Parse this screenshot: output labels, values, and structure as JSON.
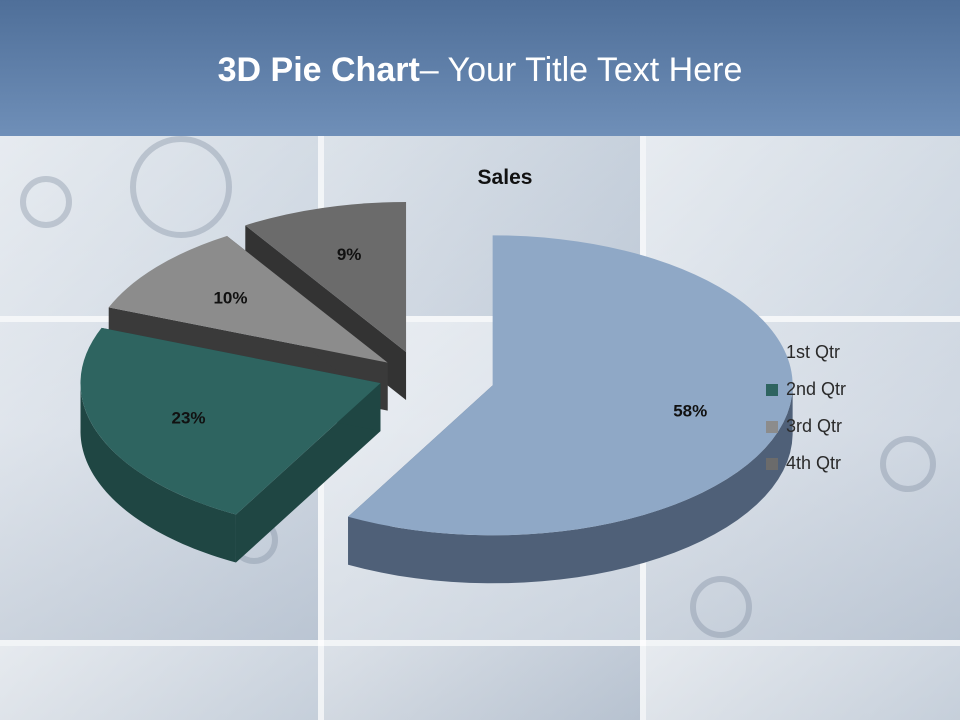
{
  "slide": {
    "title_bold": "3D Pie Chart",
    "title_rest": "– Your Title Text Here"
  },
  "chart_data": {
    "type": "pie",
    "title": "Sales",
    "categories": [
      "1st Qtr",
      "2nd Qtr",
      "3rd Qtr",
      "4th Qtr"
    ],
    "values": [
      58,
      23,
      10,
      9
    ],
    "labels": [
      "58%",
      "23%",
      "10%",
      "9%"
    ],
    "colors": [
      "#8fa8c6",
      "#2e6460",
      "#8c8c8c",
      "#6b6b6b"
    ],
    "side_colors": [
      "#4f6078",
      "#1f4643",
      "#3a3a3a",
      "#333333"
    ],
    "legend_position": "right",
    "style": "3d-exploded"
  }
}
